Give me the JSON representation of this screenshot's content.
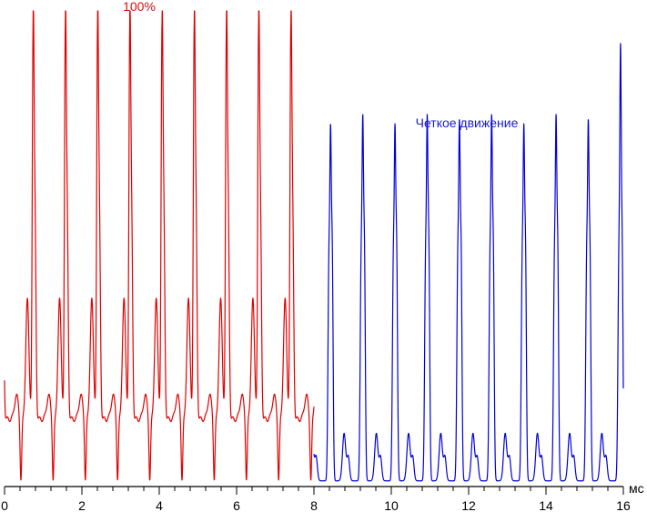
{
  "chart_data": {
    "type": "line",
    "title": "",
    "xlabel": "",
    "x_unit": "мс",
    "ylabel": "",
    "xlim": [
      0,
      16
    ],
    "ylim": [
      0,
      1
    ],
    "x_ticks": [
      0,
      2,
      4,
      6,
      8,
      10,
      12,
      14,
      16
    ],
    "y_ticks": [],
    "grid": false,
    "legend": "none",
    "series": [
      {
        "name": "100%",
        "color": "#e00000",
        "label_color": "#d01010",
        "x_range": [
          0,
          8.0
        ],
        "period": 0.833,
        "first_peak": 0.74,
        "peak": 0.97,
        "peak_variation": 0.0,
        "pattern": "pwm-100"
      },
      {
        "name": "Четкое движение",
        "color": "#0000dd",
        "label_color": "#1a1ad0",
        "x_range": [
          8.0,
          16.0
        ],
        "period": 0.833,
        "first_peak": 8.43,
        "peak": 0.72,
        "peak_variation": [
          0.0,
          0.02,
          0.0,
          0.02,
          0.01,
          0.02,
          0.0,
          0.02,
          0.01,
          0.17,
          0.0,
          0.04
        ],
        "pattern": "pwm-clear-motion"
      }
    ]
  }
}
